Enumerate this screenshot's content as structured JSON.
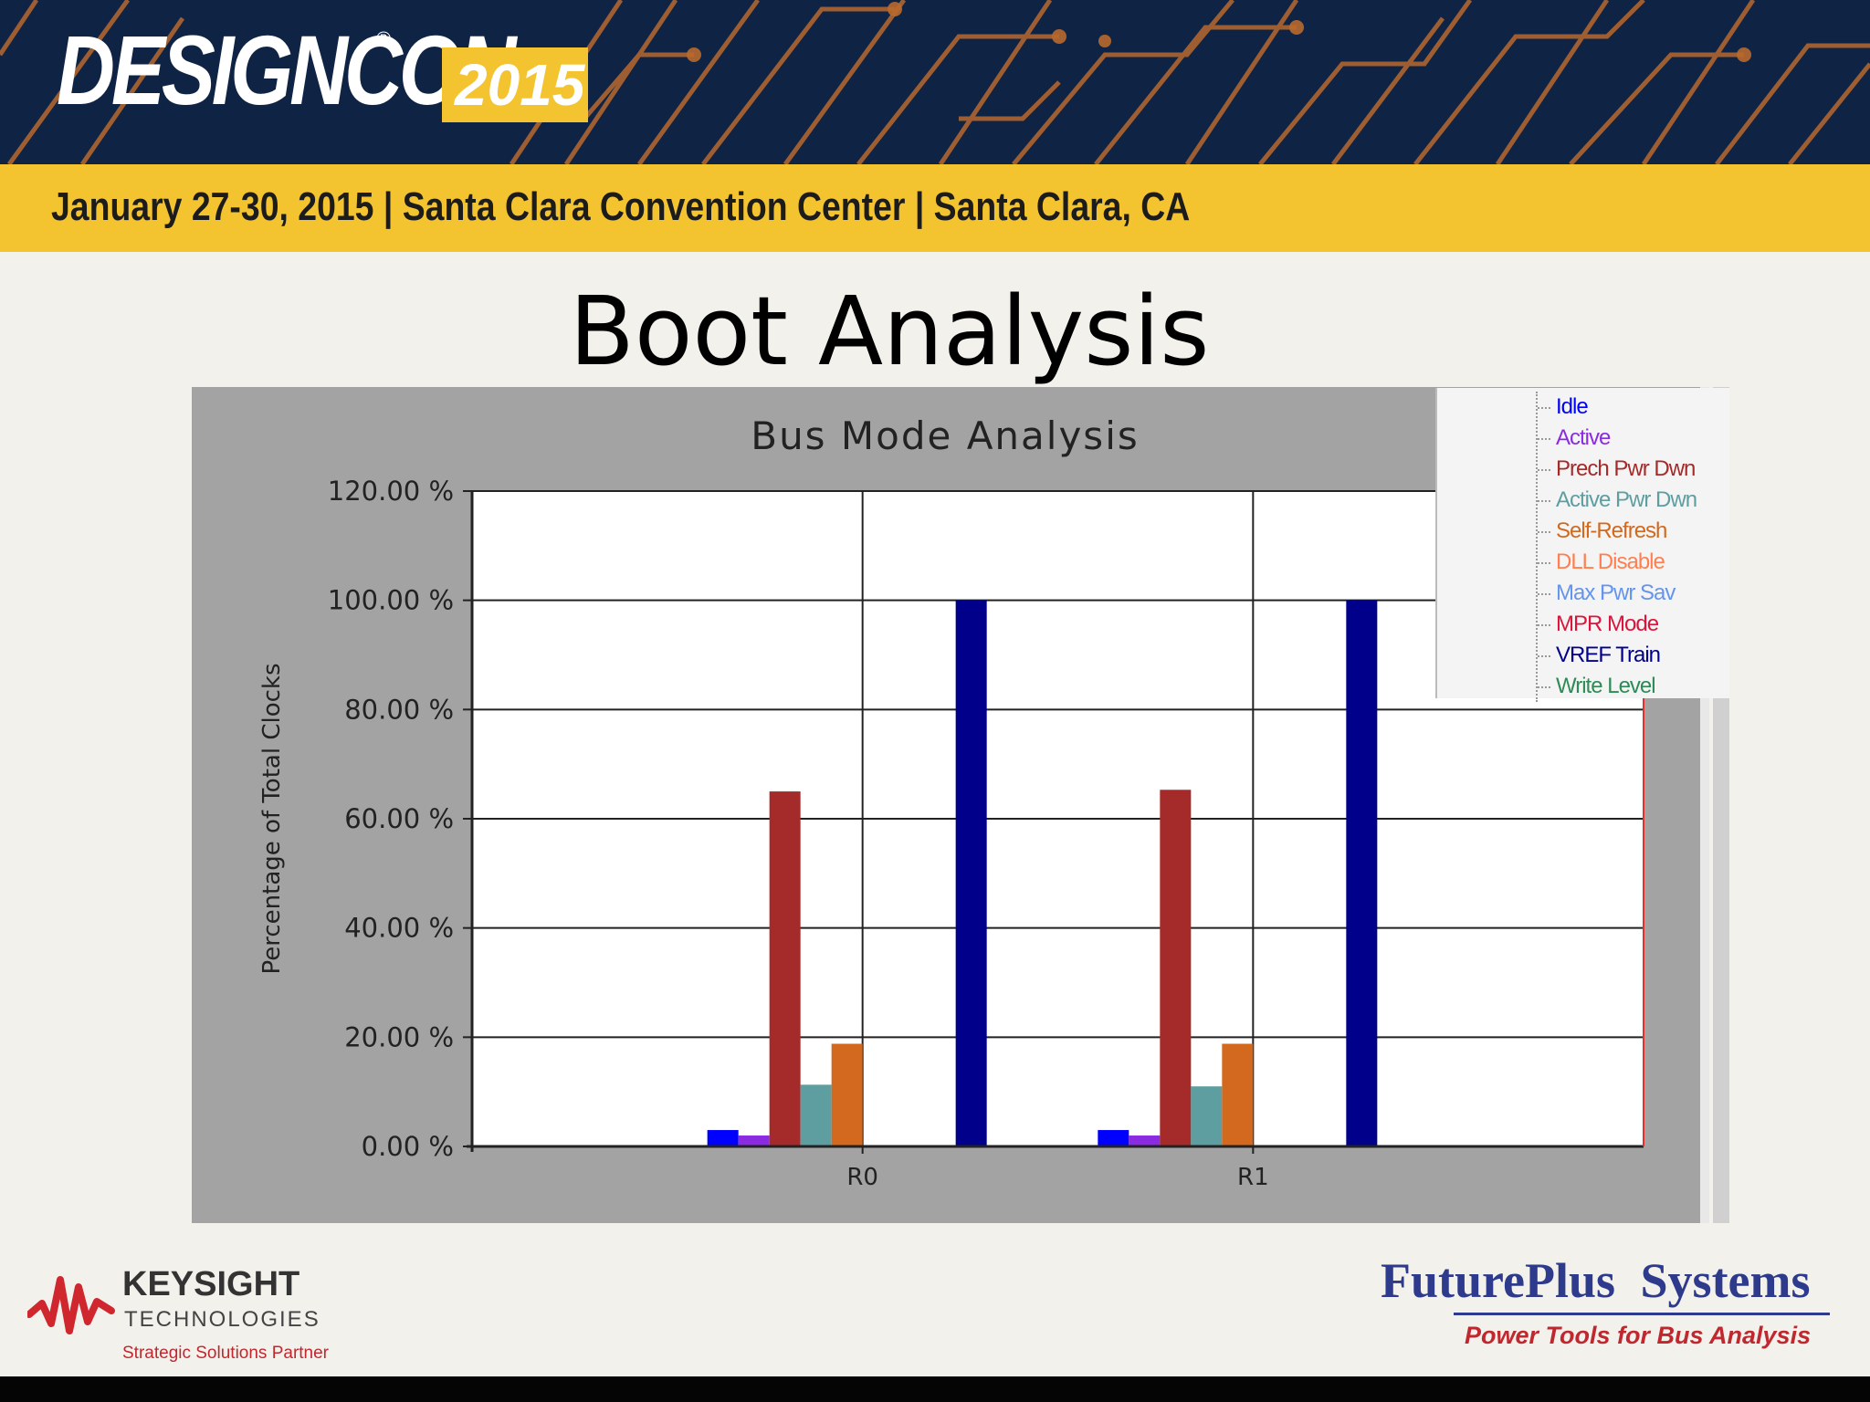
{
  "banner": {
    "logo_text": "DESIGNCON",
    "logo_reg": "®",
    "logo_year": "2015",
    "date_line": "January 27-30, 2015 | Santa Clara Convention Center | Santa Clara, CA"
  },
  "slide": {
    "title": "Boot Analysis"
  },
  "chart_data": {
    "type": "bar",
    "title": "Bus Mode Analysis",
    "ylabel": "Percentage of Total Clocks",
    "xlabel": "",
    "ylim": [
      0,
      120
    ],
    "yticks": [
      "0.00 %",
      "20.00 %",
      "40.00 %",
      "60.00 %",
      "80.00 %",
      "100.00 %",
      "120.00 %"
    ],
    "grid": true,
    "legend_position": "top-right",
    "categories": [
      "R0",
      "R1"
    ],
    "series": [
      {
        "name": "Idle",
        "color": "#0000ff",
        "values": [
          3,
          3
        ]
      },
      {
        "name": "Active",
        "color": "#8a2be2",
        "values": [
          2,
          2
        ]
      },
      {
        "name": "Prech Pwr Dwn",
        "color": "#a52a2a",
        "values": [
          65,
          65.3
        ]
      },
      {
        "name": "Active Pwr Dwn",
        "color": "#5f9ea0",
        "values": [
          11.3,
          11
        ]
      },
      {
        "name": "Self-Refresh",
        "color": "#d2691e",
        "values": [
          18.8,
          18.8
        ]
      },
      {
        "name": "DLL Disable",
        "color": "#ff7f50",
        "values": [
          0,
          0
        ]
      },
      {
        "name": "Max Pwr Sav",
        "color": "#6495ed",
        "values": [
          0,
          0
        ]
      },
      {
        "name": "MPR Mode",
        "color": "#dc143c",
        "values": [
          0,
          0
        ]
      },
      {
        "name": "VREF Train",
        "color": "#00008b",
        "values": [
          100,
          100
        ]
      },
      {
        "name": "Write Level",
        "color": "#2e8b57",
        "values": [
          0,
          0
        ]
      }
    ]
  },
  "footer": {
    "keysight_name": "KEYSIGHT",
    "keysight_sub": "TECHNOLOGIES",
    "keysight_partner": "Strategic Solutions Partner",
    "fps_name": "FuturePlus Systems",
    "fps_tagline": "Power Tools for Bus Analysis"
  }
}
